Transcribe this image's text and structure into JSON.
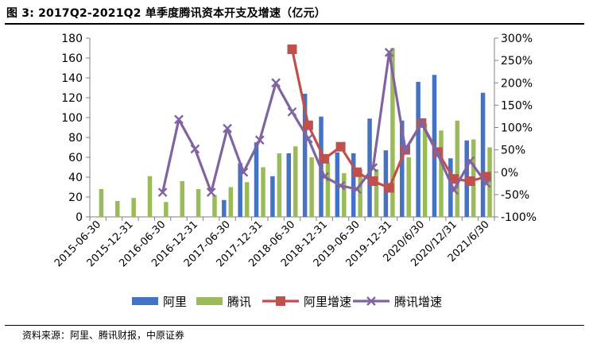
{
  "header": {
    "title": "图 3:  2017Q2-2021Q2 单季度腾讯资本开支及增速（亿元）"
  },
  "footer": {
    "source": "资料来源：阿里、腾讯财报，中原证券"
  },
  "colors": {
    "ali_bar": "#4472C4",
    "tencent_bar": "#9BBB59",
    "ali_growth": "#C0504D",
    "tencent_growth": "#8064A2"
  },
  "chart_data": {
    "type": "bar",
    "quarter_count": 25,
    "y_left": {
      "min": 0,
      "max": 180,
      "ticks": [
        0,
        20,
        40,
        60,
        80,
        100,
        120,
        140,
        160,
        180
      ]
    },
    "y_right": {
      "min": -100,
      "max": 300,
      "ticks": [
        "-100%",
        "-50%",
        "0%",
        "50%",
        "100%",
        "150%",
        "200%",
        "250%",
        "300%"
      ],
      "tick_values": [
        -100,
        -50,
        0,
        50,
        100,
        150,
        200,
        250,
        300
      ]
    },
    "x_tick_labels": [
      {
        "q": 0,
        "label": "2015-06-30"
      },
      {
        "q": 2,
        "label": "2015-12-31"
      },
      {
        "q": 4,
        "label": "2016-06-30"
      },
      {
        "q": 6,
        "label": "2016-12-31"
      },
      {
        "q": 8,
        "label": "2017-06-30"
      },
      {
        "q": 10,
        "label": "2017-12-31"
      },
      {
        "q": 12,
        "label": "2018-06-30"
      },
      {
        "q": 14,
        "label": "2018-12-31"
      },
      {
        "q": 16,
        "label": "2019-06-30"
      },
      {
        "q": 18,
        "label": "2019-12-31"
      },
      {
        "q": 20,
        "label": "2020/6/30"
      },
      {
        "q": 22,
        "label": "2020/12/31"
      },
      {
        "q": 24,
        "label": "2021/6/30"
      }
    ],
    "series": [
      {
        "name": "阿里",
        "kind": "bar",
        "axis": "left",
        "color": "#4472C4",
        "values": [
          null,
          null,
          null,
          null,
          null,
          null,
          null,
          null,
          17,
          54,
          75,
          41,
          64,
          124,
          101,
          65,
          64,
          99,
          67,
          97,
          136,
          143,
          59,
          77,
          125
        ]
      },
      {
        "name": "腾讯",
        "kind": "bar",
        "axis": "left",
        "color": "#9BBB59",
        "values": [
          28,
          16,
          19,
          41,
          15,
          36,
          28,
          22,
          30,
          35,
          50,
          64,
          71,
          60,
          54,
          44,
          48,
          48,
          170,
          60,
          94,
          87,
          97,
          78,
          70
        ]
      },
      {
        "name": "阿里增速",
        "kind": "line",
        "axis": "right",
        "color": "#C0504D",
        "values": [
          null,
          null,
          null,
          null,
          null,
          null,
          null,
          null,
          null,
          null,
          null,
          null,
          275,
          105,
          30,
          57,
          0,
          -20,
          -35,
          50,
          110,
          45,
          -15,
          -20,
          -10
        ]
      },
      {
        "name": "腾讯增速",
        "kind": "line",
        "axis": "right",
        "color": "#8064A2",
        "values": [
          null,
          null,
          null,
          null,
          -45,
          118,
          52,
          -45,
          98,
          0,
          72,
          200,
          135,
          75,
          -10,
          -30,
          -38,
          10,
          268,
          50,
          110,
          40,
          -40,
          25,
          -25
        ]
      }
    ],
    "legend": {
      "position": "bottom"
    },
    "grid": false
  }
}
